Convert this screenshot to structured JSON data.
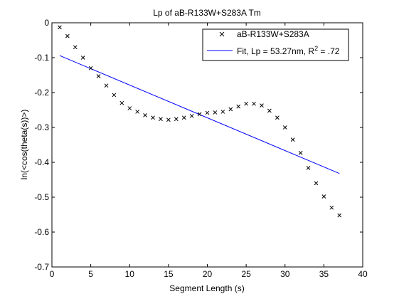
{
  "chart_data": {
    "type": "scatter",
    "title": "Lp of aB-R133W+S283A Tm",
    "xlabel": "Segment Length (s)",
    "ylabel": "ln(<cos(theta(s))>)",
    "xlim": [
      0,
      40
    ],
    "ylim": [
      -0.7,
      0
    ],
    "xticks": [
      0,
      5,
      10,
      15,
      20,
      25,
      30,
      35,
      40
    ],
    "yticks": [
      0,
      -0.1,
      -0.2,
      -0.3,
      -0.4,
      -0.5,
      -0.6,
      -0.7
    ],
    "xtick_labels": [
      "0",
      "5",
      "10",
      "15",
      "20",
      "25",
      "30",
      "35",
      "40"
    ],
    "ytick_labels": [
      "0",
      "-0.1",
      "-0.2",
      "-0.3",
      "-0.4",
      "-0.5",
      "-0.6",
      "-0.7"
    ],
    "grid": false,
    "legend_position": "top-right",
    "colors": {
      "data": "#000000",
      "fit": "#0000ff"
    },
    "series": [
      {
        "name": "aB-R133W+S283A",
        "marker": "x",
        "x": [
          1,
          2,
          3,
          4,
          5,
          6,
          7,
          8,
          9,
          10,
          11,
          12,
          13,
          14,
          15,
          16,
          17,
          18,
          19,
          20,
          21,
          22,
          23,
          24,
          25,
          26,
          27,
          28,
          29,
          30,
          31,
          32,
          33,
          34,
          35,
          36,
          37
        ],
        "y": [
          -0.013,
          -0.038,
          -0.07,
          -0.1,
          -0.13,
          -0.153,
          -0.18,
          -0.207,
          -0.23,
          -0.245,
          -0.255,
          -0.265,
          -0.272,
          -0.276,
          -0.278,
          -0.276,
          -0.272,
          -0.267,
          -0.262,
          -0.258,
          -0.257,
          -0.255,
          -0.248,
          -0.24,
          -0.232,
          -0.232,
          -0.237,
          -0.252,
          -0.272,
          -0.3,
          -0.335,
          -0.373,
          -0.416,
          -0.46,
          -0.498,
          -0.53,
          -0.552
        ]
      },
      {
        "name": "Fit, Lp = 53.27nm, R",
        "name_sup": "2",
        "name_suffix": " = .72",
        "type": "line",
        "x": [
          1,
          37
        ],
        "y": [
          -0.094,
          -0.432
        ]
      }
    ]
  }
}
